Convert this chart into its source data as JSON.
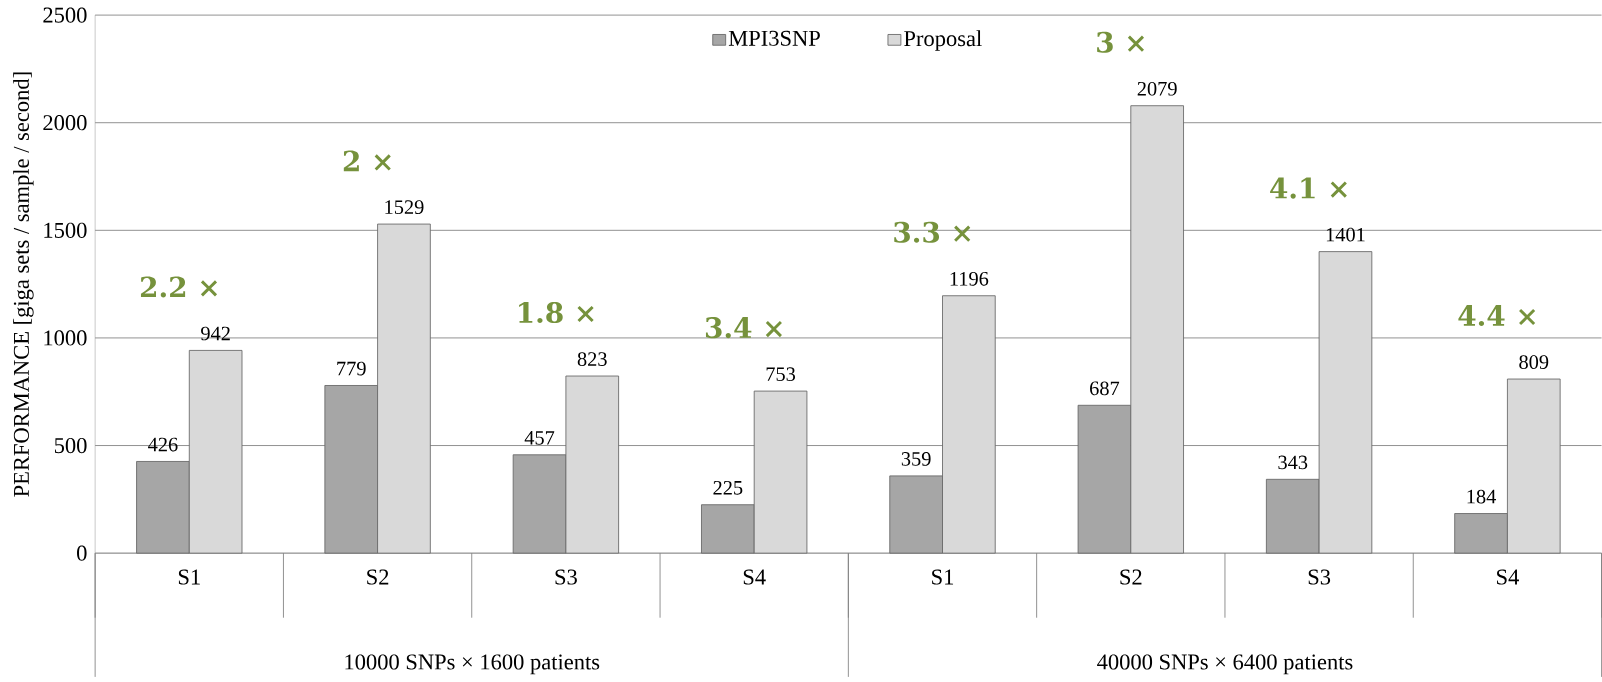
{
  "chart_data": {
    "type": "bar",
    "ylabel": "PERFORMANCE [giga sets / sample / second]",
    "categories": [
      "S1",
      "S2",
      "S3",
      "S4",
      "S1",
      "S2",
      "S3",
      "S4"
    ],
    "series": [
      {
        "name": "MPI3SNP",
        "color": "#a6a6a6",
        "values": [
          426,
          779,
          457,
          225,
          359,
          687,
          343,
          184
        ]
      },
      {
        "name": "Proposal",
        "color": "#d9d9d9",
        "values": [
          942,
          1529,
          823,
          753,
          1196,
          2079,
          1401,
          809
        ]
      }
    ],
    "ylim": [
      0,
      2500
    ],
    "yticks": [
      0,
      500,
      1000,
      1500,
      2000,
      2500
    ],
    "grid": "y",
    "legend": "top",
    "data_labels": true,
    "annotations": [
      "2.2 ×",
      "2 ×",
      "1.8 ×",
      "3.4 ×",
      "3.3 ×",
      "3 ×",
      "4.1 ×",
      "4.4 ×",
      "10000 SNPs × 1600 patients",
      "40000 SNPs × 6400 patients"
    ]
  }
}
